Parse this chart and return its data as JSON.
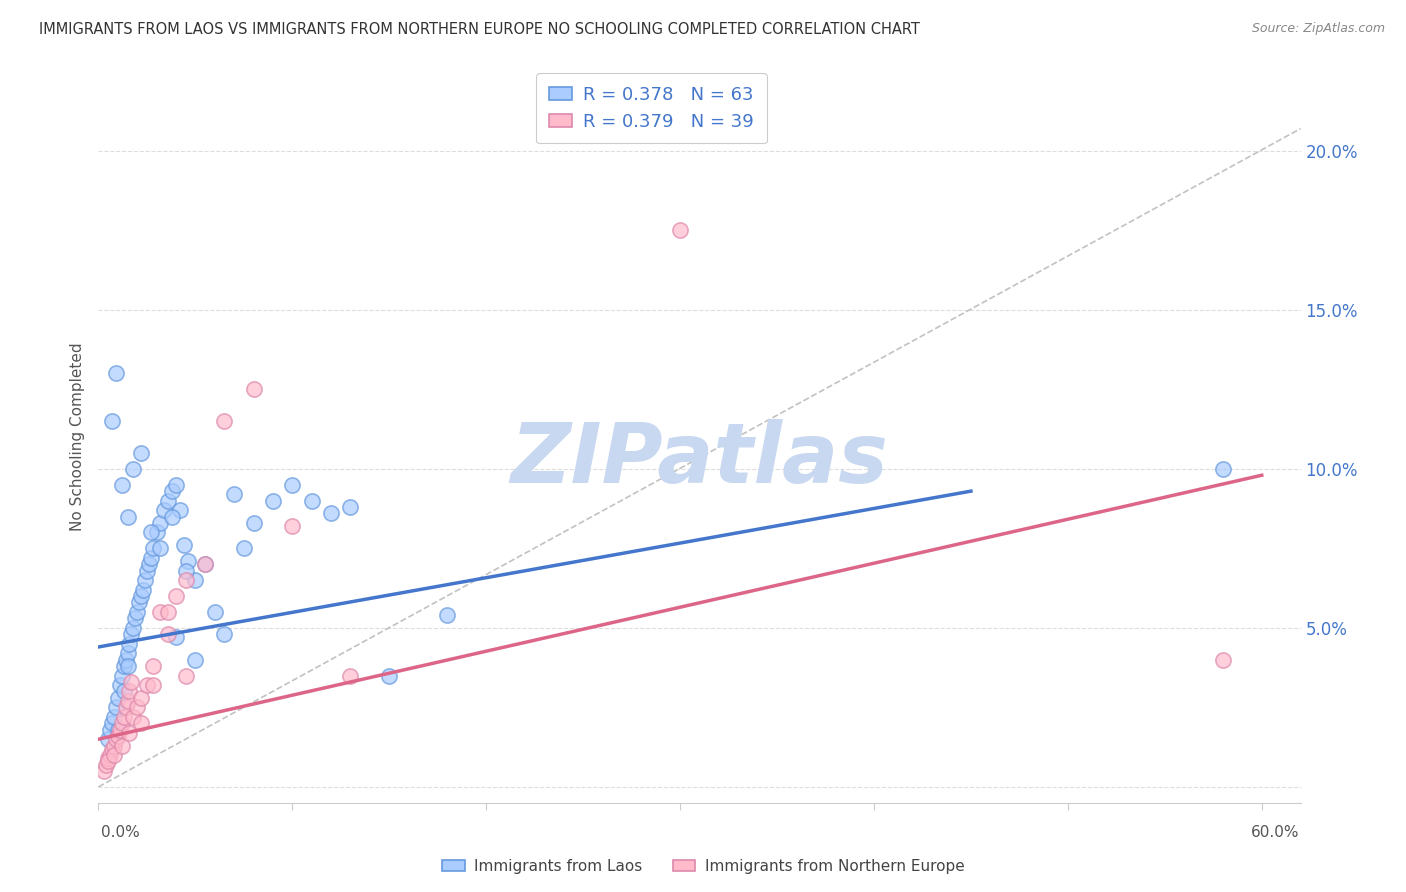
{
  "title": "IMMIGRANTS FROM LAOS VS IMMIGRANTS FROM NORTHERN EUROPE NO SCHOOLING COMPLETED CORRELATION CHART",
  "source": "Source: ZipAtlas.com",
  "ylabel": "No Schooling Completed",
  "y_ticks": [
    0.0,
    0.05,
    0.1,
    0.15,
    0.2
  ],
  "y_tick_labels": [
    "",
    "5.0%",
    "10.0%",
    "15.0%",
    "20.0%"
  ],
  "x_ticks": [
    0.0,
    0.1,
    0.2,
    0.3,
    0.4,
    0.5,
    0.6
  ],
  "xlim": [
    0.0,
    0.62
  ],
  "ylim": [
    -0.005,
    0.225
  ],
  "r_laos": "0.378",
  "n_laos": "63",
  "r_europe": "0.379",
  "n_europe": "39",
  "legend_label1": "Immigrants from Laos",
  "legend_label2": "Immigrants from Northern Europe",
  "color_laos_fill": "#aaccff",
  "color_laos_edge": "#6699dd",
  "color_laos_line": "#4477cc",
  "color_europe_fill": "#ffbbcc",
  "color_europe_edge": "#dd88aa",
  "color_europe_line": "#dd6688",
  "color_ref_line": "#bbbbbb",
  "ref_line_x": [
    0.0,
    0.62
  ],
  "ref_line_y": [
    0.0,
    0.207
  ],
  "laos_trend_x": [
    0.0,
    0.45
  ],
  "laos_trend_y": [
    0.044,
    0.093
  ],
  "europe_trend_x": [
    0.0,
    0.6
  ],
  "europe_trend_y": [
    0.015,
    0.098
  ],
  "watermark": "ZIPatlas",
  "watermark_color": "#c8d8f0",
  "background_color": "#ffffff",
  "grid_color": "#dddddd",
  "laos_x": [
    0.005,
    0.006,
    0.007,
    0.008,
    0.009,
    0.01,
    0.01,
    0.011,
    0.012,
    0.013,
    0.013,
    0.014,
    0.015,
    0.015,
    0.016,
    0.017,
    0.018,
    0.019,
    0.02,
    0.021,
    0.022,
    0.023,
    0.024,
    0.025,
    0.026,
    0.027,
    0.028,
    0.03,
    0.032,
    0.034,
    0.036,
    0.038,
    0.04,
    0.042,
    0.044,
    0.046,
    0.05,
    0.055,
    0.06,
    0.065,
    0.07,
    0.075,
    0.08,
    0.09,
    0.1,
    0.11,
    0.12,
    0.13,
    0.15,
    0.18,
    0.007,
    0.009,
    0.012,
    0.015,
    0.018,
    0.022,
    0.027,
    0.032,
    0.038,
    0.045,
    0.05,
    0.58,
    0.04
  ],
  "laos_y": [
    0.015,
    0.018,
    0.02,
    0.022,
    0.025,
    0.028,
    0.018,
    0.032,
    0.035,
    0.03,
    0.038,
    0.04,
    0.042,
    0.038,
    0.045,
    0.048,
    0.05,
    0.053,
    0.055,
    0.058,
    0.06,
    0.062,
    0.065,
    0.068,
    0.07,
    0.072,
    0.075,
    0.08,
    0.083,
    0.087,
    0.09,
    0.093,
    0.095,
    0.087,
    0.076,
    0.071,
    0.065,
    0.07,
    0.055,
    0.048,
    0.092,
    0.075,
    0.083,
    0.09,
    0.095,
    0.09,
    0.086,
    0.088,
    0.035,
    0.054,
    0.115,
    0.13,
    0.095,
    0.085,
    0.1,
    0.105,
    0.08,
    0.075,
    0.085,
    0.068,
    0.04,
    0.1,
    0.047
  ],
  "europe_x": [
    0.003,
    0.004,
    0.005,
    0.006,
    0.007,
    0.008,
    0.009,
    0.01,
    0.011,
    0.012,
    0.013,
    0.014,
    0.015,
    0.016,
    0.017,
    0.018,
    0.02,
    0.022,
    0.025,
    0.028,
    0.032,
    0.036,
    0.04,
    0.045,
    0.055,
    0.065,
    0.08,
    0.1,
    0.13,
    0.58,
    0.005,
    0.008,
    0.012,
    0.016,
    0.022,
    0.028,
    0.036,
    0.045,
    0.3
  ],
  "europe_y": [
    0.005,
    0.007,
    0.009,
    0.01,
    0.012,
    0.013,
    0.015,
    0.016,
    0.018,
    0.02,
    0.022,
    0.025,
    0.027,
    0.03,
    0.033,
    0.022,
    0.025,
    0.028,
    0.032,
    0.038,
    0.055,
    0.055,
    0.06,
    0.065,
    0.07,
    0.115,
    0.125,
    0.082,
    0.035,
    0.04,
    0.008,
    0.01,
    0.013,
    0.017,
    0.02,
    0.032,
    0.048,
    0.035,
    0.175
  ]
}
